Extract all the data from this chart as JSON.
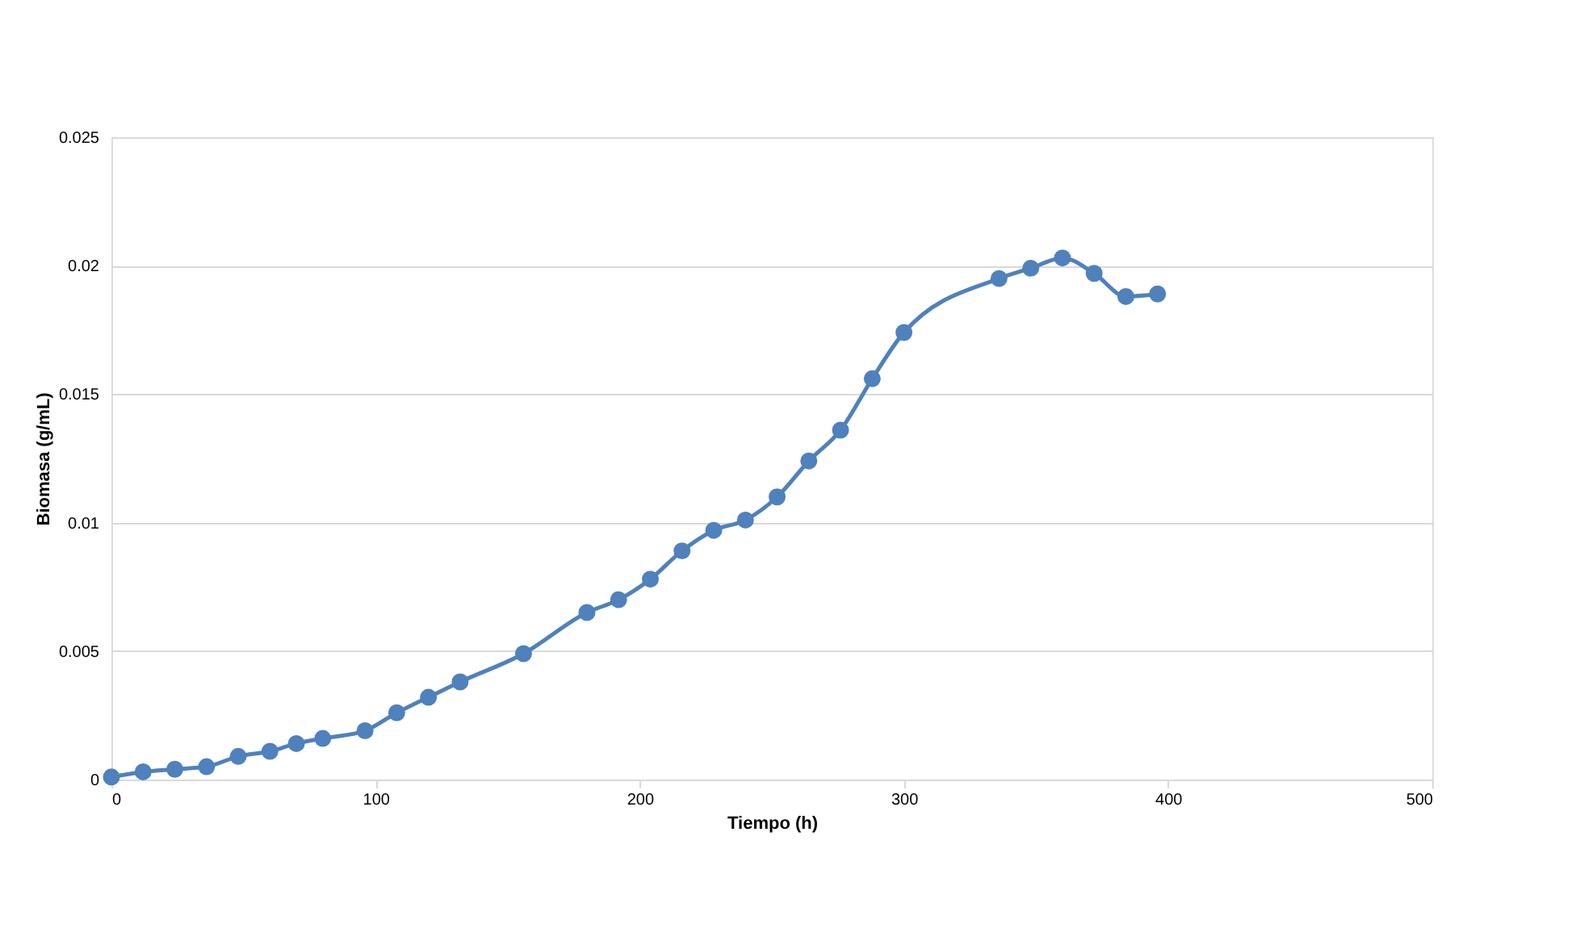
{
  "chart_data": {
    "type": "line",
    "xlabel": "Tiempo (h)",
    "ylabel": "Biomasa (g/mL)",
    "x": [
      0,
      12,
      24,
      36,
      48,
      60,
      70,
      80,
      96,
      108,
      120,
      132,
      156,
      180,
      192,
      204,
      216,
      228,
      240,
      252,
      264,
      276,
      288,
      300,
      336,
      348,
      360,
      372,
      384,
      396
    ],
    "series": [
      {
        "color": "#4f81bd",
        "values": [
          0.0001,
          0.0003,
          0.0004,
          0.0005,
          0.0009,
          0.0011,
          0.0014,
          0.0016,
          0.0019,
          0.0026,
          0.0032,
          0.0038,
          0.0049,
          0.0065,
          0.007,
          0.0078,
          0.0089,
          0.0097,
          0.0101,
          0.011,
          0.0124,
          0.0136,
          0.0156,
          0.0174,
          0.0195,
          0.0199,
          0.0203,
          0.0197,
          0.0188,
          0.0189
        ]
      }
    ],
    "xlim": [
      0,
      500
    ],
    "xticks": [
      0,
      100,
      200,
      300,
      400,
      500
    ],
    "ylim": [
      0,
      0.025
    ],
    "yticks": [
      0,
      0.005,
      0.01,
      0.015,
      0.02,
      0.025
    ],
    "grid": "y",
    "marker": "circle",
    "line_style": "solid"
  }
}
